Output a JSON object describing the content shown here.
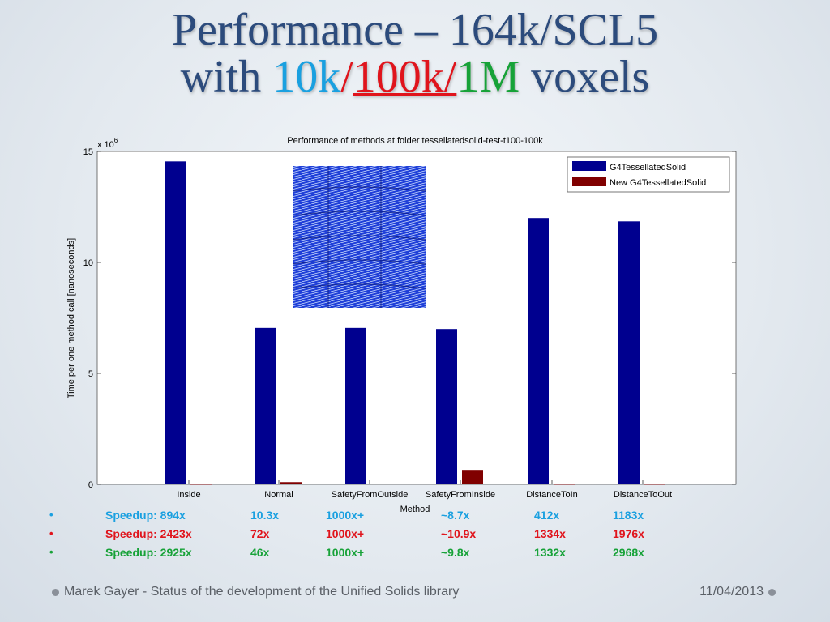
{
  "title": {
    "line1": "Performance – 164k/SCL5",
    "line2_prefix": "with ",
    "t10k": "10k",
    "slash1": "/",
    "t100k": "100k/",
    "t1m": "1M",
    "line2_suffix": " voxels"
  },
  "chart_data": {
    "type": "bar",
    "title": "Performance of methods at folder tessellatedsolid-test-t100-100k",
    "xlabel": "Method",
    "ylabel": "Time per one method call [nanoseconds]",
    "y_multiplier": "x 10",
    "y_multiplier_exp": "6",
    "ylim": [
      0,
      15
    ],
    "yticks": [
      "0",
      "5",
      "10",
      "15"
    ],
    "categories": [
      "Inside",
      "Normal",
      "SafetyFromOutside",
      "SafetyFromInside",
      "DistanceToIn",
      "DistanceToOut"
    ],
    "series": [
      {
        "name": "G4TessellatedSolid",
        "color": "#00008f",
        "values": [
          14.55,
          7.05,
          7.05,
          7.0,
          12.0,
          11.85
        ]
      },
      {
        "name": "New G4TessellatedSolid",
        "color": "#800000",
        "values": [
          0.02,
          0.1,
          0.0,
          0.65,
          0.02,
          0.02
        ]
      }
    ],
    "legend": "top-right",
    "grid": false
  },
  "speedups": [
    {
      "bullet": "•",
      "color": "#1aa0e0",
      "label": "Speedup: 894x",
      "vals": [
        "10.3x",
        "1000x+",
        "~8.7x",
        "412x",
        "1183x"
      ]
    },
    {
      "bullet": "•",
      "color": "#e0141c",
      "label": "Speedup: 2423x",
      "vals": [
        "72x",
        "1000x+",
        "~10.9x",
        "1334x",
        "1976x"
      ]
    },
    {
      "bullet": "•",
      "color": "#17a238",
      "label": "Speedup: 2925x",
      "vals": [
        "46x",
        "1000x+",
        "~9.8x",
        "1332x",
        "2968x"
      ]
    }
  ],
  "footer": {
    "left": "Marek Gayer - Status of the development of the Unified Solids library",
    "date": "11/04/2013"
  }
}
